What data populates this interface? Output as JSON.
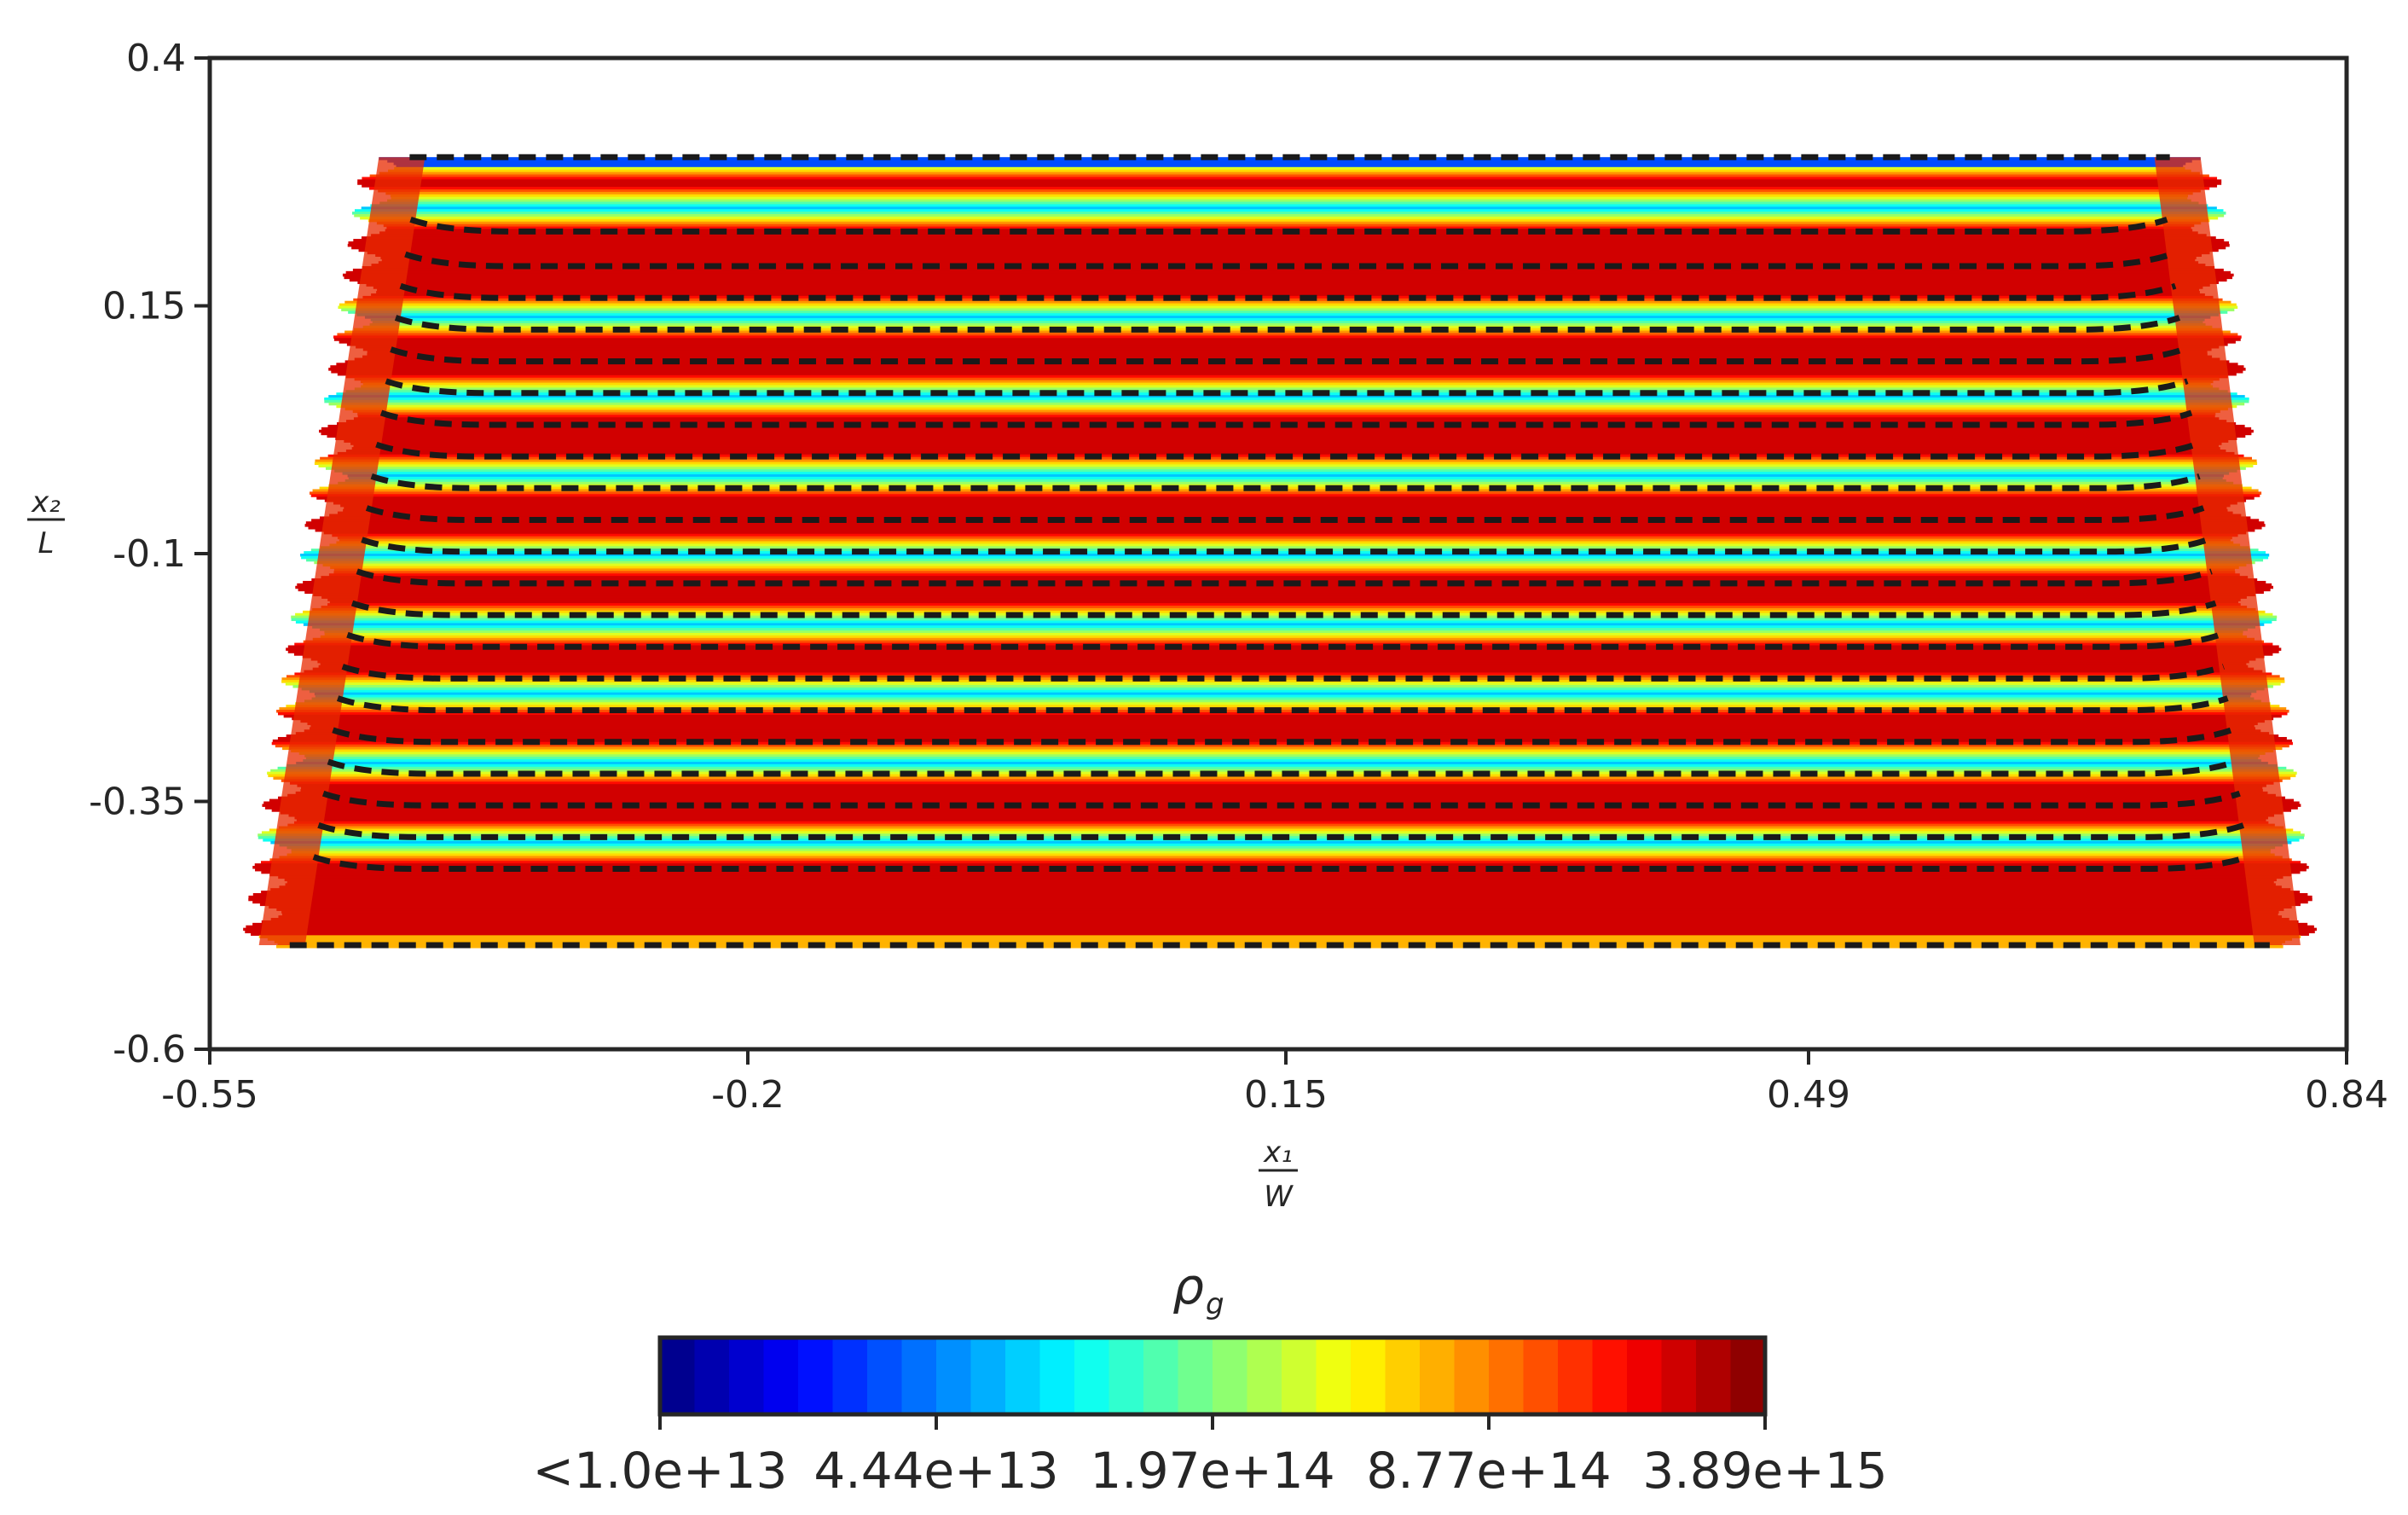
{
  "chart_data": {
    "type": "heatmap",
    "title": "",
    "x_axis": {
      "label_num": "x₁",
      "label_den": "W",
      "range": [
        -0.55,
        0.84
      ],
      "ticks": [
        -0.55,
        -0.2,
        0.15,
        0.49,
        0.84
      ],
      "tick_labels": [
        "-0.55",
        "-0.2",
        "0.15",
        "0.49",
        "0.84"
      ]
    },
    "y_axis": {
      "label_num": "x₂",
      "label_den": "L",
      "range": [
        -0.6,
        0.4
      ],
      "ticks": [
        0.4,
        0.15,
        -0.1,
        -0.35,
        -0.6
      ],
      "tick_labels": [
        "0.4",
        "0.15",
        "-0.1",
        "-0.35",
        "-0.6"
      ]
    },
    "field": {
      "quantity": "ρ_g",
      "colormap": "jet",
      "top_edge": {
        "x": [
          -0.42,
          0.725
        ],
        "y": 0.3
      },
      "bottom_edge": {
        "x": [
          -0.498,
          0.79
        ],
        "y": -0.495
      },
      "dashed_contour_levels_y": [
        0.3,
        0.225,
        0.19,
        0.158,
        0.126,
        0.094,
        0.062,
        0.03,
        -0.002,
        -0.034,
        -0.066,
        -0.098,
        -0.13,
        -0.162,
        -0.194,
        -0.226,
        -0.258,
        -0.29,
        -0.322,
        -0.354,
        -0.386,
        -0.418,
        -0.495
      ],
      "low_band_y": [
        0.3,
        0.25,
        0.14,
        0.06,
        -0.02,
        -0.1,
        -0.17,
        -0.24,
        -0.31,
        -0.39
      ],
      "edge_color": "#1a1a1a"
    },
    "colorbar": {
      "title": "ρ",
      "title_subscript": "g",
      "tick_labels": [
        "<1.0e+13",
        "4.44e+13",
        "1.97e+14",
        "8.77e+14",
        "3.89e+15"
      ],
      "n_levels": 32,
      "orientation": "horizontal",
      "placement": "bottom"
    }
  }
}
